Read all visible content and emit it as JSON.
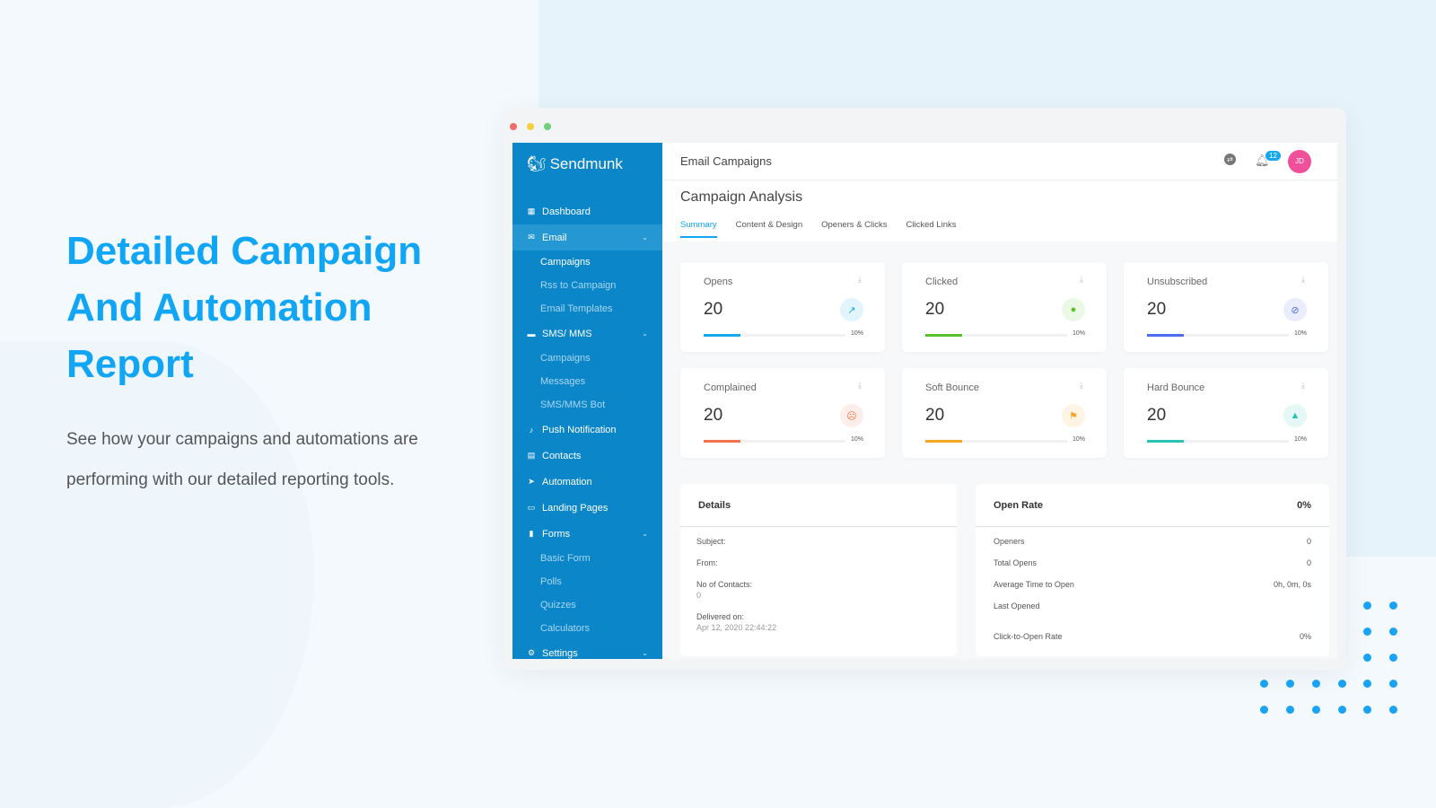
{
  "hero": {
    "title": "Detailed Campaign And Automation Report",
    "text": "See how your campaigns and automations are performing with our detailed reporting tools."
  },
  "colors": {
    "brand": "#10a5f5",
    "sidebar": "#0b86c8",
    "avatar": "#f0509a"
  },
  "sidebar": {
    "logo": "Sendmunk",
    "items": [
      {
        "label": "Dashboard",
        "icon": "dashboard-icon"
      },
      {
        "label": "Email",
        "icon": "mail-icon",
        "expanded": true,
        "subs": [
          "Campaigns",
          "Rss to Campaign",
          "Email Templates"
        ]
      },
      {
        "label": "SMS/ MMS",
        "icon": "message-icon",
        "subs": [
          "Campaigns",
          "Messages",
          "SMS/MMS Bot"
        ]
      },
      {
        "label": "Push Notification",
        "icon": "bell-icon"
      },
      {
        "label": "Contacts",
        "icon": "contacts-icon"
      },
      {
        "label": "Automation",
        "icon": "send-icon"
      },
      {
        "label": "Landing Pages",
        "icon": "page-icon"
      },
      {
        "label": "Forms",
        "icon": "form-icon",
        "subs": [
          "Basic Form",
          "Polls",
          "Quizzes",
          "Calculators"
        ]
      },
      {
        "label": "Settings",
        "icon": "gear-icon"
      }
    ]
  },
  "header": {
    "title": "Email Campaigns",
    "notifications": "12",
    "avatar": "JD"
  },
  "page": {
    "title": "Campaign Analysis",
    "tabs": [
      "Summary",
      "Content & Design",
      "Openers & Clicks",
      "Clicked Links"
    ]
  },
  "stats": [
    {
      "label": "Opens",
      "value": "20",
      "percent": "10%",
      "color": "#14a8f0",
      "icon": "external-link-icon"
    },
    {
      "label": "Clicked",
      "value": "20",
      "percent": "10%",
      "color": "#57c22c",
      "icon": "mouse-icon"
    },
    {
      "label": "Unsubscribed",
      "value": "20",
      "percent": "10%",
      "color": "#4e6ef2",
      "icon": "block-icon"
    },
    {
      "label": "Complained",
      "value": "20",
      "percent": "10%",
      "color": "#f2734d",
      "icon": "sad-face-icon"
    },
    {
      "label": "Soft Bounce",
      "value": "20",
      "percent": "10%",
      "color": "#f5a623",
      "icon": "flag-icon"
    },
    {
      "label": "Hard Bounce",
      "value": "20",
      "percent": "10%",
      "color": "#2ac3b5",
      "icon": "warning-icon"
    }
  ],
  "details": {
    "title": "Details",
    "subject": "Subject:",
    "from": "From:",
    "contacts_label": "No of Contacts:",
    "contacts": "0",
    "delivered_label": "Delivered on:",
    "delivered": "Apr 12, 2020 22:44:22"
  },
  "open_rate": {
    "title": "Open Rate",
    "value": "0%",
    "rows": [
      {
        "label": "Openers",
        "value": "0"
      },
      {
        "label": "Total Opens",
        "value": "0"
      },
      {
        "label": "Average Time to Open",
        "value": "0h, 0m, 0s"
      },
      {
        "label": "Last Opened",
        "value": ""
      },
      {
        "label": "Click-to-Open Rate",
        "value": "0%"
      }
    ]
  }
}
